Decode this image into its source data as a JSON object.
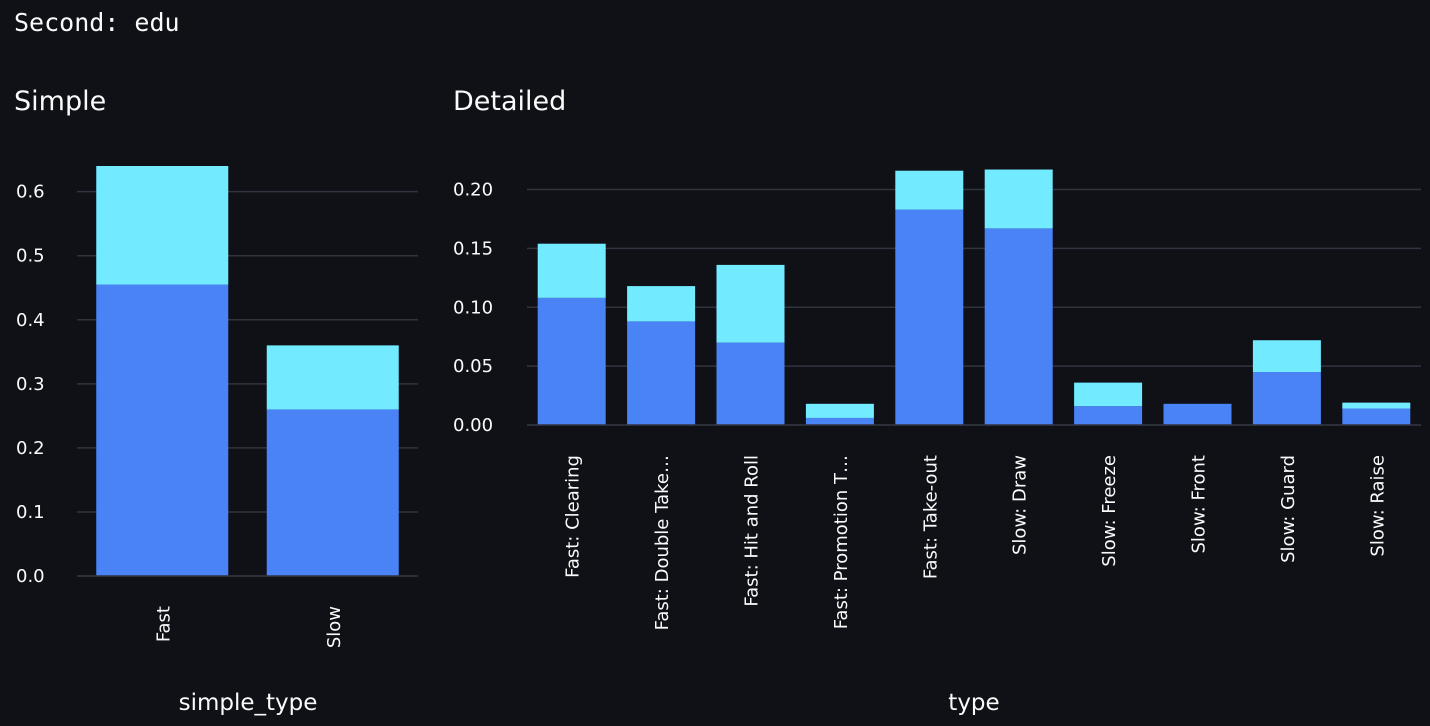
{
  "header": {
    "text": "Second: edu"
  },
  "chart_data": [
    {
      "type": "bar",
      "stacked": true,
      "title": "Simple",
      "xlabel": "simple_type",
      "ylabel": "",
      "categories": [
        "Fast",
        "Slow"
      ],
      "series": [
        {
          "values": [
            0.455,
            0.26
          ]
        },
        {
          "values": [
            0.185,
            0.1
          ]
        }
      ],
      "yticks": [
        "0.0",
        "0.1",
        "0.2",
        "0.3",
        "0.4",
        "0.5",
        "0.6"
      ],
      "ylim": [
        0,
        0.64
      ],
      "grid": true,
      "colors": [
        "#4a83f6",
        "#72eaff"
      ]
    },
    {
      "type": "bar",
      "stacked": true,
      "title": "Detailed",
      "xlabel": "type",
      "ylabel": "",
      "categories": [
        "Fast: Clearing",
        "Fast: Double Take…",
        "Fast: Hit and Roll",
        "Fast: Promotion T…",
        "Fast: Take-out",
        "Slow: Draw",
        "Slow: Freeze",
        "Slow: Front",
        "Slow: Guard",
        "Slow: Raise"
      ],
      "series": [
        {
          "values": [
            0.108,
            0.088,
            0.07,
            0.006,
            0.183,
            0.167,
            0.016,
            0.018,
            0.045,
            0.014
          ]
        },
        {
          "values": [
            0.046,
            0.03,
            0.066,
            0.012,
            0.033,
            0.05,
            0.02,
            0.0,
            0.027,
            0.005
          ]
        }
      ],
      "yticks": [
        "0.00",
        "0.05",
        "0.10",
        "0.15",
        "0.20"
      ],
      "ylim": [
        0,
        0.22
      ],
      "grid": true,
      "colors": [
        "#4a83f6",
        "#72eaff"
      ]
    }
  ]
}
